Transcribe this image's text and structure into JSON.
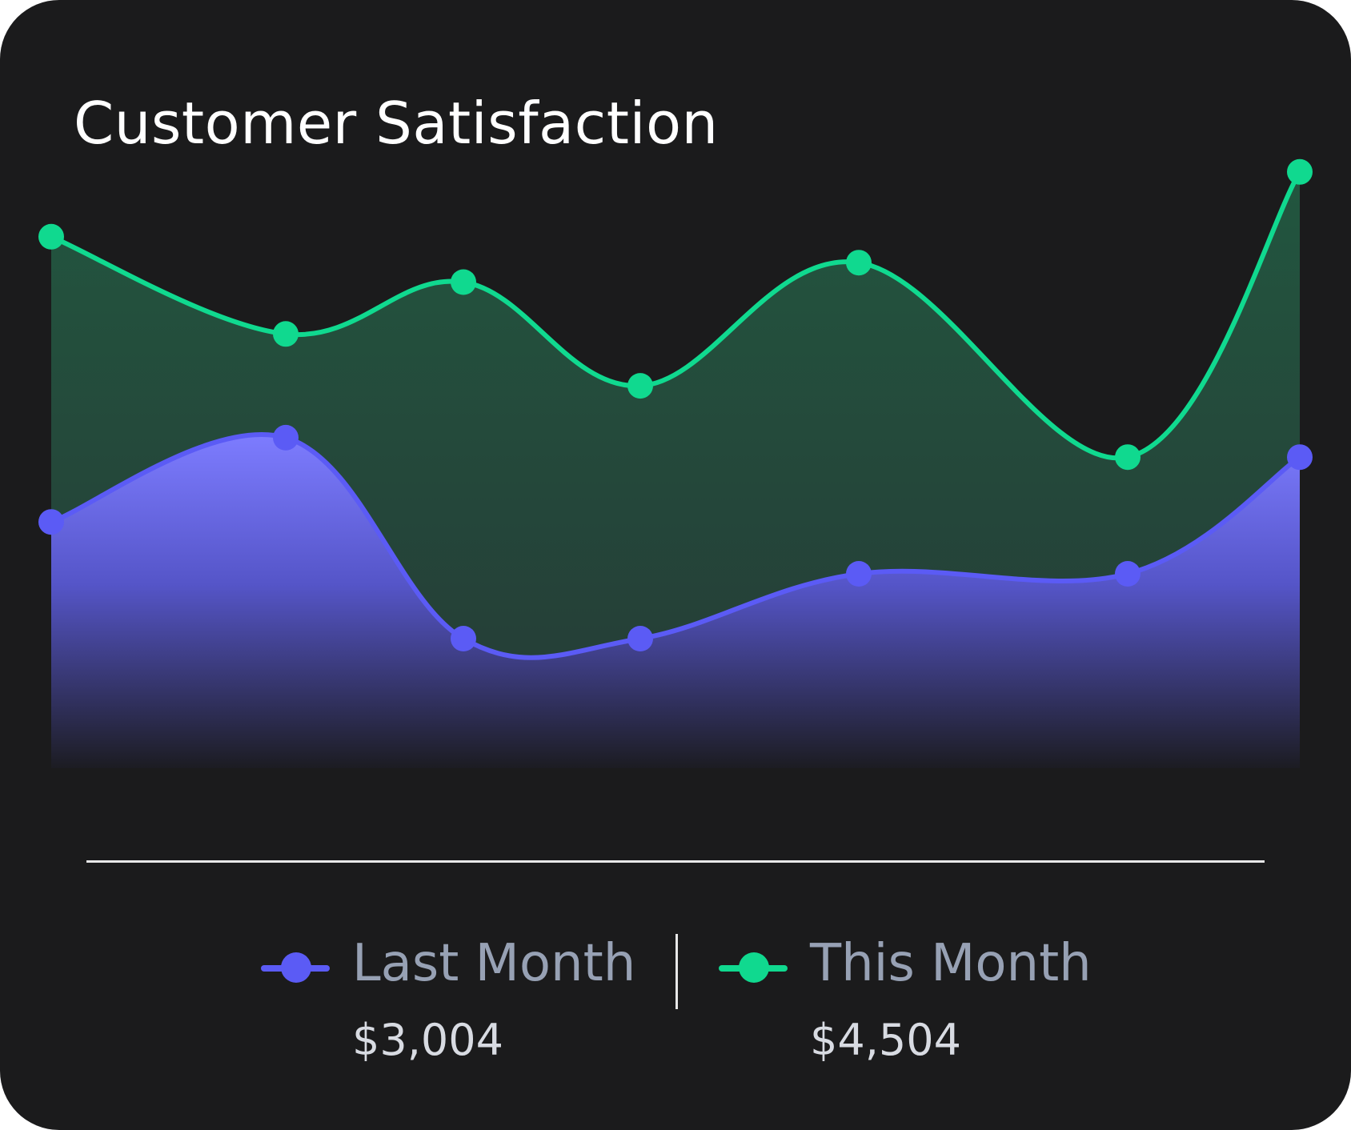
{
  "title": "Customer Satisfaction",
  "legend": {
    "items": [
      {
        "label": "Last Month",
        "value": "$3,004",
        "color": "#5b5bf5"
      },
      {
        "label": "This Month",
        "value": "$4,504",
        "color": "#10d98f"
      }
    ]
  },
  "chart_data": {
    "type": "area",
    "title": "Customer Satisfaction",
    "xlabel": "",
    "ylabel": "",
    "x": [
      1,
      2,
      3,
      4,
      5,
      6,
      7
    ],
    "ylim": [
      0,
      100
    ],
    "grid": false,
    "legend_position": "bottom",
    "series": [
      {
        "name": "Last Month",
        "values": [
          38,
          51,
          20,
          20,
          30,
          30,
          48
        ],
        "color": "#5b5bf5",
        "total": "$3,004"
      },
      {
        "name": "This Month",
        "values": [
          82,
          67,
          75,
          59,
          78,
          48,
          92
        ],
        "color": "#10d98f",
        "total": "$4,504"
      }
    ]
  }
}
